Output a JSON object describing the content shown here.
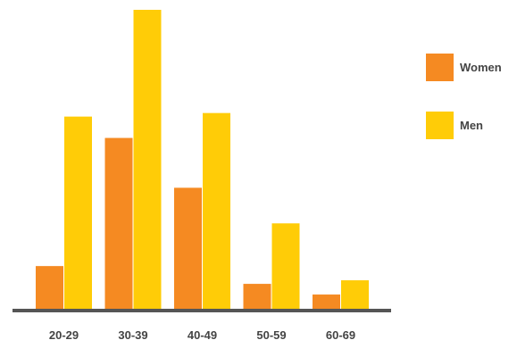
{
  "chart_data": {
    "type": "bar",
    "categories": [
      "20-29",
      "30-39",
      "40-49",
      "50-59",
      "60-69"
    ],
    "series": [
      {
        "name": "Women",
        "values": [
          12,
          48,
          34,
          7,
          4
        ],
        "color": "#F58A22"
      },
      {
        "name": "Men",
        "values": [
          54,
          84,
          55,
          24,
          8
        ],
        "color": "#FFCC07"
      }
    ],
    "ylim": [
      0,
      84
    ],
    "grid": false,
    "legend_position": "right",
    "axis_color": "#555555"
  }
}
